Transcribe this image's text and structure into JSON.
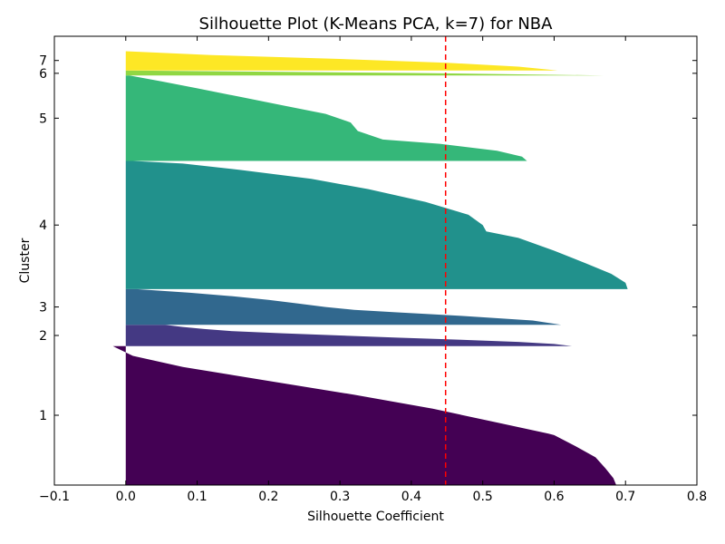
{
  "chart_data": {
    "type": "silhouette",
    "title": "Silhouette Plot (K-Means PCA, k=7) for NBA",
    "xlabel": "Silhouette Coefficient",
    "ylabel": "Cluster",
    "xlim": [
      -0.1,
      0.8
    ],
    "ylim": [
      0,
      63
    ],
    "x_ticks": [
      -0.1,
      0.0,
      0.1,
      0.2,
      0.3,
      0.4,
      0.5,
      0.6,
      0.7,
      0.8
    ],
    "x_tick_labels": [
      "−0.1",
      "0.0",
      "0.1",
      "0.2",
      "0.3",
      "0.4",
      "0.5",
      "0.6",
      "0.7",
      "0.8"
    ],
    "average_silhouette": 0.448,
    "average_line_color": "#ff0000",
    "clusters": [
      {
        "label": "1",
        "y_start": 0.0,
        "y_end": 19.5,
        "label_y": 9.8,
        "color": "#440154",
        "profile": [
          [
            0,
            0.687
          ],
          [
            0.05,
            0.683
          ],
          [
            0.12,
            0.672
          ],
          [
            0.2,
            0.658
          ],
          [
            0.28,
            0.63
          ],
          [
            0.36,
            0.6
          ],
          [
            0.37,
            0.592
          ],
          [
            0.45,
            0.52
          ],
          [
            0.55,
            0.43
          ],
          [
            0.65,
            0.32
          ],
          [
            0.75,
            0.2
          ],
          [
            0.85,
            0.08
          ],
          [
            0.93,
            0.01
          ],
          [
            1.0,
            -0.018
          ]
        ]
      },
      {
        "label": "2",
        "y_start": 19.5,
        "y_end": 22.5,
        "label_y": 21.0,
        "color": "#443983",
        "profile": [
          [
            0,
            0.625
          ],
          [
            0.1,
            0.6
          ],
          [
            0.2,
            0.55
          ],
          [
            0.3,
            0.47
          ],
          [
            0.4,
            0.38
          ],
          [
            0.5,
            0.3
          ],
          [
            0.6,
            0.22
          ],
          [
            0.7,
            0.15
          ],
          [
            0.8,
            0.11
          ],
          [
            0.9,
            0.08
          ],
          [
            1.0,
            0.055
          ]
        ]
      },
      {
        "label": "3",
        "y_start": 22.5,
        "y_end": 27.5,
        "label_y": 25.0,
        "color": "#31688e",
        "profile": [
          [
            0,
            0.61
          ],
          [
            0.12,
            0.57
          ],
          [
            0.25,
            0.47
          ],
          [
            0.35,
            0.38
          ],
          [
            0.42,
            0.32
          ],
          [
            0.5,
            0.28
          ],
          [
            0.6,
            0.24
          ],
          [
            0.7,
            0.2
          ],
          [
            0.8,
            0.15
          ],
          [
            0.9,
            0.09
          ],
          [
            1.0,
            0.015
          ]
        ]
      },
      {
        "label": "4",
        "y_start": 27.5,
        "y_end": 45.5,
        "label_y": 36.5,
        "color": "#21918c",
        "profile": [
          [
            0,
            0.703
          ],
          [
            0.05,
            0.7
          ],
          [
            0.12,
            0.68
          ],
          [
            0.2,
            0.645
          ],
          [
            0.3,
            0.6
          ],
          [
            0.4,
            0.55
          ],
          [
            0.45,
            0.505
          ],
          [
            0.5,
            0.5
          ],
          [
            0.58,
            0.48
          ],
          [
            0.68,
            0.42
          ],
          [
            0.78,
            0.34
          ],
          [
            0.86,
            0.26
          ],
          [
            0.93,
            0.16
          ],
          [
            0.98,
            0.08
          ],
          [
            1.0,
            0.01
          ]
        ]
      },
      {
        "label": "5",
        "y_start": 45.5,
        "y_end": 57.5,
        "label_y": 51.5,
        "color": "#35b779",
        "profile": [
          [
            0,
            0.562
          ],
          [
            0.05,
            0.555
          ],
          [
            0.12,
            0.52
          ],
          [
            0.2,
            0.44
          ],
          [
            0.25,
            0.36
          ],
          [
            0.35,
            0.325
          ],
          [
            0.45,
            0.315
          ],
          [
            0.55,
            0.28
          ],
          [
            0.65,
            0.22
          ],
          [
            0.75,
            0.16
          ],
          [
            0.85,
            0.1
          ],
          [
            0.93,
            0.05
          ],
          [
            1.0,
            0.005
          ]
        ]
      },
      {
        "label": "6",
        "y_start": 57.5,
        "y_end": 58.2,
        "label_y": 57.8,
        "color": "#90d743",
        "profile": [
          [
            0,
            0.67
          ],
          [
            0.5,
            0.4
          ],
          [
            1.0,
            0.0
          ]
        ]
      },
      {
        "label": "7",
        "y_start": 58.2,
        "y_end": 60.9,
        "label_y": 59.6,
        "color": "#fde725",
        "profile": [
          [
            0,
            0.605
          ],
          [
            0.2,
            0.55
          ],
          [
            0.4,
            0.45
          ],
          [
            0.6,
            0.3
          ],
          [
            0.8,
            0.12
          ],
          [
            1.0,
            0.0
          ]
        ]
      }
    ]
  }
}
